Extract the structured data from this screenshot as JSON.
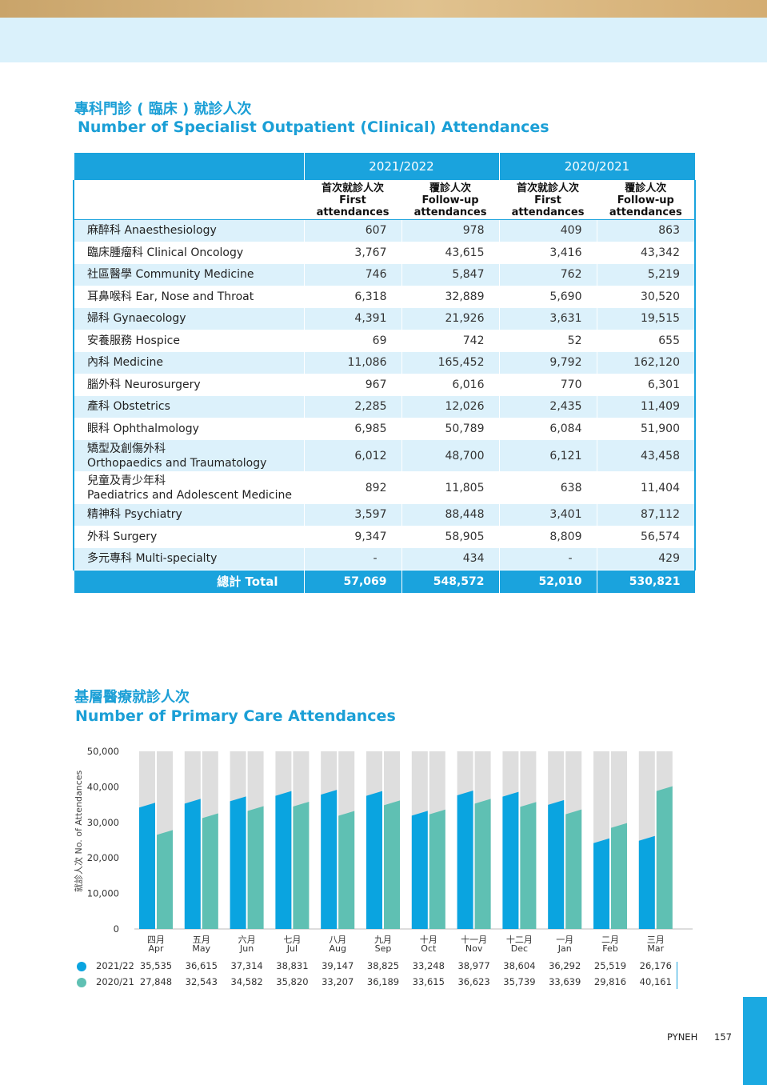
{
  "section1": {
    "title_zh": "專科門診 ( 臨床 ) 就診人次",
    "title_en": "Number of Specialist Outpatient (Clinical) Attendances"
  },
  "table": {
    "years": [
      "2021/2022",
      "2020/2021"
    ],
    "sub_headers": [
      {
        "zh": "首次就診人次",
        "en": "First attendances"
      },
      {
        "zh": "覆診人次",
        "en": "Follow-up attendances"
      },
      {
        "zh": "首次就診人次",
        "en": "First attendances"
      },
      {
        "zh": "覆診人次",
        "en": "Follow-up attendances"
      }
    ],
    "rows": [
      {
        "zh": "麻醉科",
        "en": "Anaesthesiology",
        "two_line": false,
        "values": [
          "607",
          "978",
          "409",
          "863"
        ]
      },
      {
        "zh": "臨床腫瘤科",
        "en": "Clinical Oncology",
        "two_line": false,
        "values": [
          "3,767",
          "43,615",
          "3,416",
          "43,342"
        ]
      },
      {
        "zh": "社區醫學",
        "en": "Community Medicine",
        "two_line": false,
        "values": [
          "746",
          "5,847",
          "762",
          "5,219"
        ]
      },
      {
        "zh": "耳鼻喉科",
        "en": "Ear, Nose and Throat",
        "two_line": false,
        "values": [
          "6,318",
          "32,889",
          "5,690",
          "30,520"
        ]
      },
      {
        "zh": "婦科",
        "en": "Gynaecology",
        "two_line": false,
        "values": [
          "4,391",
          "21,926",
          "3,631",
          "19,515"
        ]
      },
      {
        "zh": "安養服務",
        "en": "Hospice",
        "two_line": false,
        "values": [
          "69",
          "742",
          "52",
          "655"
        ]
      },
      {
        "zh": "內科",
        "en": "Medicine",
        "two_line": false,
        "values": [
          "11,086",
          "165,452",
          "9,792",
          "162,120"
        ]
      },
      {
        "zh": "腦外科",
        "en": "Neurosurgery",
        "two_line": false,
        "values": [
          "967",
          "6,016",
          "770",
          "6,301"
        ]
      },
      {
        "zh": "產科",
        "en": "Obstetrics",
        "two_line": false,
        "values": [
          "2,285",
          "12,026",
          "2,435",
          "11,409"
        ]
      },
      {
        "zh": "眼科",
        "en": "Ophthalmology",
        "two_line": false,
        "values": [
          "6,985",
          "50,789",
          "6,084",
          "51,900"
        ]
      },
      {
        "zh": "矯型及創傷外科",
        "en": "Orthopaedics and Traumatology",
        "two_line": true,
        "values": [
          "6,012",
          "48,700",
          "6,121",
          "43,458"
        ]
      },
      {
        "zh": "兒童及青少年科",
        "en": "Paediatrics and Adolescent Medicine",
        "two_line": true,
        "values": [
          "892",
          "11,805",
          "638",
          "11,404"
        ]
      },
      {
        "zh": "精神科",
        "en": "Psychiatry",
        "two_line": false,
        "values": [
          "3,597",
          "88,448",
          "3,401",
          "87,112"
        ]
      },
      {
        "zh": "外科",
        "en": "Surgery",
        "two_line": false,
        "values": [
          "9,347",
          "58,905",
          "8,809",
          "56,574"
        ]
      },
      {
        "zh": "多元專科",
        "en": "Multi-specialty",
        "two_line": false,
        "values": [
          "-",
          "434",
          "-",
          "429"
        ]
      }
    ],
    "total": {
      "label": "總計 Total",
      "values": [
        "57,069",
        "548,572",
        "52,010",
        "530,821"
      ]
    }
  },
  "section2": {
    "title_zh": "基層醫療就診人次",
    "title_en": "Number of Primary Care Attendances"
  },
  "chart_data": {
    "type": "bar",
    "ylabel": "就診人次 No. of Attendances",
    "ylim": [
      0,
      50000
    ],
    "yticks": [
      "0",
      "10,000",
      "20,000",
      "30,000",
      "40,000",
      "50,000"
    ],
    "grid": false,
    "categories": [
      {
        "zh": "四月",
        "en": "Apr"
      },
      {
        "zh": "五月",
        "en": "May"
      },
      {
        "zh": "六月",
        "en": "Jun"
      },
      {
        "zh": "七月",
        "en": "Jul"
      },
      {
        "zh": "八月",
        "en": "Aug"
      },
      {
        "zh": "九月",
        "en": "Sep"
      },
      {
        "zh": "十月",
        "en": "Oct"
      },
      {
        "zh": "十一月",
        "en": "Nov"
      },
      {
        "zh": "十二月",
        "en": "Dec"
      },
      {
        "zh": "一月",
        "en": "Jan"
      },
      {
        "zh": "二月",
        "en": "Feb"
      },
      {
        "zh": "三月",
        "en": "Mar"
      }
    ],
    "series": [
      {
        "name": "2021/22",
        "color": "#0aa4e0",
        "values": [
          35535,
          36615,
          37314,
          38831,
          39147,
          38825,
          33248,
          38977,
          38604,
          36292,
          25519,
          26176
        ],
        "labels": [
          "35,535",
          "36,615",
          "37,314",
          "38,831",
          "39,147",
          "38,825",
          "33,248",
          "38,977",
          "38,604",
          "36,292",
          "25,519",
          "26,176"
        ]
      },
      {
        "name": "2020/21",
        "color": "#5fc0b3",
        "values": [
          27848,
          32543,
          34582,
          35820,
          33207,
          36189,
          33615,
          36623,
          35739,
          33639,
          29816,
          40161
        ],
        "labels": [
          "27,848",
          "32,543",
          "34,582",
          "35,820",
          "33,207",
          "36,189",
          "33,615",
          "36,623",
          "35,739",
          "33,639",
          "29,816",
          "40,161"
        ]
      }
    ],
    "legend": "bottom-left",
    "background_bar_color": "#dedede"
  },
  "footer": {
    "brand": "PYNEH",
    "page": "157"
  }
}
